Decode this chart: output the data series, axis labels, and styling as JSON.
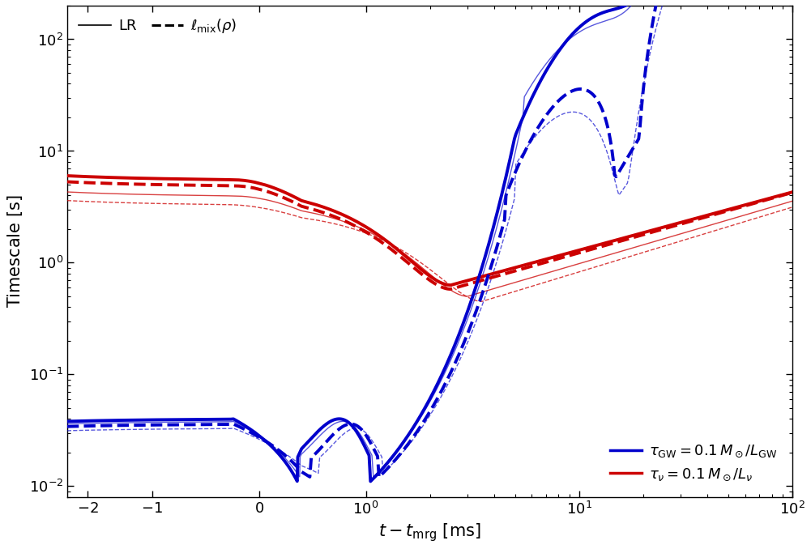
{
  "xlabel": "$t - t_{\\mathrm{mrg}}$ [ms]",
  "ylabel": "Timescale [s]",
  "xlim_left": -2.5,
  "xlim_right": 100,
  "ylim_bottom": 0.008,
  "ylim_top": 200,
  "blue_color": "#0000cc",
  "red_color": "#cc0000",
  "background": "#ffffff",
  "lw_thick": 2.8,
  "lw_thin": 1.0,
  "symlog_linthresh": 0.5,
  "symlog_linscale": 0.18
}
